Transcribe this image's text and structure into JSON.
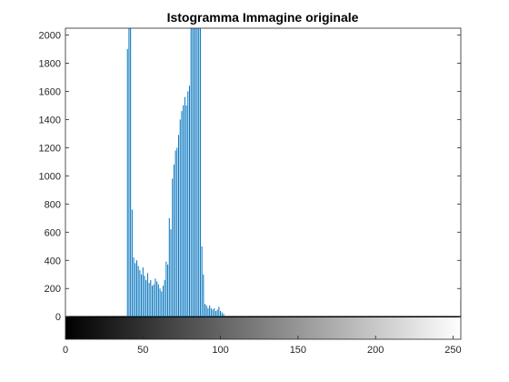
{
  "chart_data": {
    "type": "bar",
    "title": "Istogramma Immagine originale",
    "xlabel": "",
    "ylabel": "",
    "xlim": [
      0,
      255
    ],
    "ylim": [
      -160,
      2048
    ],
    "grid": false,
    "y_ticks": [
      "0",
      "200",
      "400",
      "600",
      "800",
      "1000",
      "1200",
      "1400",
      "1600",
      "1800",
      "2000"
    ],
    "x_ticks": [
      "0",
      "50",
      "100",
      "150",
      "200",
      "250"
    ],
    "bar_color": "#0072BD",
    "colorbar": "grayscale 0-255",
    "series": [
      {
        "x": [
          40,
          41,
          42,
          43,
          44,
          45,
          46,
          47,
          48,
          49,
          50,
          51,
          52,
          53,
          54,
          55,
          56,
          57,
          58,
          59,
          60,
          61,
          62,
          63,
          64,
          65,
          66,
          67,
          68,
          69,
          70,
          71,
          72,
          73,
          74,
          75,
          76,
          77,
          78,
          79,
          80,
          81,
          82,
          83,
          84,
          85,
          86,
          87,
          88,
          89,
          90,
          91,
          92,
          93,
          94,
          95,
          96,
          97,
          98,
          99,
          100,
          101,
          102,
          255
        ],
        "values": [
          1900,
          2048,
          2048,
          760,
          420,
          380,
          400,
          360,
          330,
          300,
          350,
          290,
          260,
          310,
          240,
          260,
          220,
          230,
          270,
          250,
          230,
          200,
          180,
          220,
          260,
          390,
          370,
          700,
          620,
          980,
          1080,
          1180,
          1200,
          1290,
          1400,
          1460,
          1500,
          1560,
          1500,
          1600,
          1640,
          2048,
          2048,
          2048,
          2048,
          2048,
          2048,
          2048,
          500,
          300,
          90,
          80,
          60,
          80,
          60,
          50,
          60,
          40,
          50,
          70,
          40,
          30,
          20,
          120
        ]
      }
    ]
  }
}
